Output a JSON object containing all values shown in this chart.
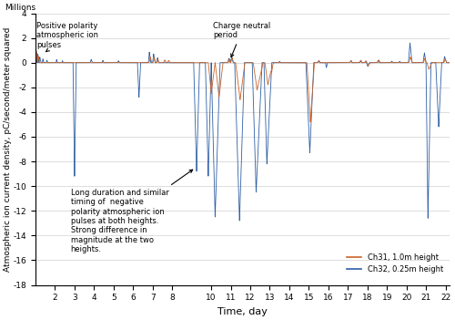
{
  "title": "",
  "xlabel": "Time, day",
  "ylabel": "Atmospheric ion current density, pC/second/meter squared",
  "ylabel_millions": "Millions",
  "ylim": [
    -18,
    4
  ],
  "yticks": [
    -18,
    -16,
    -14,
    -12,
    -10,
    -8,
    -6,
    -4,
    -2,
    0,
    2,
    4
  ],
  "xlim": [
    1,
    22.2
  ],
  "xticks": [
    2,
    3,
    4,
    5,
    6,
    7,
    8,
    10,
    11,
    12,
    13,
    14,
    15,
    16,
    17,
    18,
    19,
    20,
    21,
    22
  ],
  "ch31_color": "#C8642A",
  "ch32_color": "#2E5FA3",
  "legend_ch31": "Ch31, 1.0m height",
  "legend_ch32": "Ch32, 0.25m height",
  "grid_color": "#d0d0d0",
  "figsize": [
    5.0,
    3.51
  ],
  "dpi": 100
}
